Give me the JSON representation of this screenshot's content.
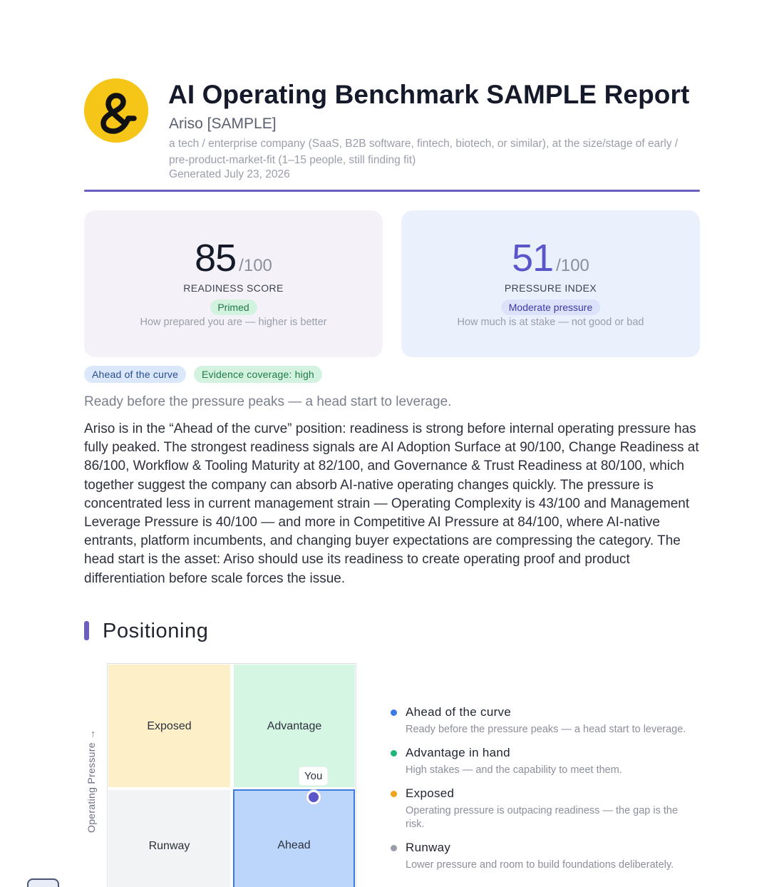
{
  "header": {
    "title": "AI Operating Benchmark SAMPLE Report",
    "company": "Ariso [SAMPLE]",
    "description": "a tech / enterprise company (SaaS, B2B software, fintech, biotech, or similar), at the size/stage of early / pre-product-market-fit (1–15 people, still finding fit)",
    "generated": "Generated July 23, 2026",
    "accent_color": "#6a5fc1"
  },
  "scores": {
    "readiness": {
      "value": "85",
      "denominator": "/100",
      "label": "READINESS SCORE",
      "badge": "Primed",
      "help": "How prepared you are — higher is better"
    },
    "pressure": {
      "value": "51",
      "denominator": "/100",
      "label": "PRESSURE INDEX",
      "badge": "Moderate pressure",
      "help": "How much is at stake — not good or bad"
    }
  },
  "chips": {
    "position": "Ahead of the curve",
    "evidence": "Evidence coverage: high"
  },
  "summary": {
    "tagline": "Ready before the pressure peaks — a head start to leverage.",
    "body": "Ariso is in the “Ahead of the curve” position: readiness is strong before internal operating pressure has fully peaked. The strongest readiness signals are AI Adoption Surface at 90/100, Change Readiness at 86/100, Workflow & Tooling Maturity at 82/100, and Governance & Trust Readiness at 80/100, which together suggest the company can absorb AI-native operating changes quickly. The pressure is concentrated less in current management strain — Operating Complexity is 43/100 and Management Leverage Pressure is 40/100 — and more in Competitive AI Pressure at 84/100, where AI-native entrants, platform incumbents, and changing buyer expectations are compressing the category. The head start is the asset: Ariso should use its readiness to create operating proof and product differentiation before scale forces the issue."
  },
  "positioning": {
    "section_title": "Positioning",
    "quadrants": {
      "exposed": "Exposed",
      "advantage": "Advantage",
      "runway": "Runway",
      "ahead": "Ahead"
    },
    "y_axis_label": "Operating Pressure →",
    "marker_label": "You",
    "legend": [
      {
        "title": "Ahead of the curve",
        "desc": "Ready before the pressure peaks — a head start to leverage.",
        "color": "#3b7be8"
      },
      {
        "title": "Advantage in hand",
        "desc": "High stakes — and the capability to meet them.",
        "color": "#1fb57a"
      },
      {
        "title": "Exposed",
        "desc": "Operating pressure is outpacing readiness — the gap is the risk.",
        "color": "#f0a21a"
      },
      {
        "title": "Runway",
        "desc": "Lower pressure and room to build foundations deliberately.",
        "color": "#9a9eaa"
      }
    ]
  }
}
